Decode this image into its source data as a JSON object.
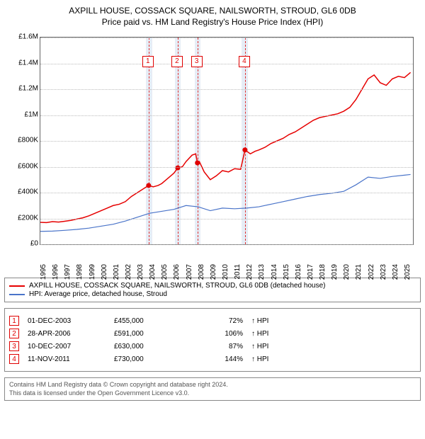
{
  "title": "AXPILL HOUSE, COSSACK SQUARE, NAILSWORTH, STROUD, GL6 0DB",
  "subtitle": "Price paid vs. HM Land Registry's House Price Index (HPI)",
  "chart": {
    "type": "line",
    "background_color": "#ffffff",
    "grid_color": "#bbbbbb",
    "border_color": "#666666",
    "xlim": [
      1995,
      2025.7
    ],
    "ylim": [
      0,
      1600000
    ],
    "yticks": [
      {
        "v": 0,
        "label": "£0"
      },
      {
        "v": 200000,
        "label": "£200K"
      },
      {
        "v": 400000,
        "label": "£400K"
      },
      {
        "v": 600000,
        "label": "£600K"
      },
      {
        "v": 800000,
        "label": "£800K"
      },
      {
        "v": 1000000,
        "label": "£1M"
      },
      {
        "v": 1200000,
        "label": "£1.2M"
      },
      {
        "v": 1400000,
        "label": "£1.4M"
      },
      {
        "v": 1600000,
        "label": "£1.6M"
      }
    ],
    "xticks": [
      1995,
      1996,
      1997,
      1998,
      1999,
      2000,
      2001,
      2002,
      2003,
      2004,
      2005,
      2006,
      2007,
      2008,
      2009,
      2010,
      2011,
      2012,
      2013,
      2014,
      2015,
      2016,
      2017,
      2018,
      2019,
      2020,
      2021,
      2022,
      2023,
      2024,
      2025
    ],
    "bands": [
      {
        "from": 2003.7,
        "to": 2004.2
      },
      {
        "from": 2006.1,
        "to": 2006.55
      },
      {
        "from": 2007.7,
        "to": 2008.2
      },
      {
        "from": 2011.6,
        "to": 2012.1
      }
    ],
    "vlines": [
      2003.92,
      2006.32,
      2007.94,
      2011.86
    ],
    "markers": [
      {
        "n": "1",
        "x": 2003.92
      },
      {
        "n": "2",
        "x": 2006.32
      },
      {
        "n": "3",
        "x": 2007.94
      },
      {
        "n": "4",
        "x": 2011.86
      }
    ],
    "marker_box_color": "#e00000",
    "series": [
      {
        "name": "AXPILL HOUSE, COSSACK SQUARE, NAILSWORTH, STROUD, GL6 0DB (detached house)",
        "color": "#e60000",
        "line_width": 1.5,
        "points": [
          [
            1995,
            170000
          ],
          [
            1995.5,
            168000
          ],
          [
            1996,
            175000
          ],
          [
            1996.5,
            172000
          ],
          [
            1997,
            178000
          ],
          [
            1997.5,
            185000
          ],
          [
            1998,
            195000
          ],
          [
            1998.5,
            205000
          ],
          [
            1999,
            220000
          ],
          [
            1999.5,
            240000
          ],
          [
            2000,
            260000
          ],
          [
            2000.5,
            280000
          ],
          [
            2001,
            300000
          ],
          [
            2001.5,
            310000
          ],
          [
            2002,
            330000
          ],
          [
            2002.5,
            370000
          ],
          [
            2003,
            400000
          ],
          [
            2003.5,
            430000
          ],
          [
            2003.92,
            455000
          ],
          [
            2004.3,
            445000
          ],
          [
            2004.7,
            455000
          ],
          [
            2005,
            470000
          ],
          [
            2005.5,
            510000
          ],
          [
            2006,
            550000
          ],
          [
            2006.32,
            591000
          ],
          [
            2006.7,
            600000
          ],
          [
            2007,
            640000
          ],
          [
            2007.5,
            690000
          ],
          [
            2007.8,
            700000
          ],
          [
            2007.94,
            630000
          ],
          [
            2008.1,
            640000
          ],
          [
            2008.5,
            560000
          ],
          [
            2009,
            500000
          ],
          [
            2009.5,
            530000
          ],
          [
            2010,
            570000
          ],
          [
            2010.5,
            560000
          ],
          [
            2011,
            585000
          ],
          [
            2011.5,
            580000
          ],
          [
            2011.86,
            730000
          ],
          [
            2012.3,
            700000
          ],
          [
            2012.7,
            720000
          ],
          [
            2013,
            730000
          ],
          [
            2013.5,
            750000
          ],
          [
            2014,
            780000
          ],
          [
            2014.5,
            800000
          ],
          [
            2015,
            820000
          ],
          [
            2015.5,
            850000
          ],
          [
            2016,
            870000
          ],
          [
            2016.5,
            900000
          ],
          [
            2017,
            930000
          ],
          [
            2017.5,
            960000
          ],
          [
            2018,
            980000
          ],
          [
            2018.5,
            990000
          ],
          [
            2019,
            1000000
          ],
          [
            2019.5,
            1010000
          ],
          [
            2020,
            1030000
          ],
          [
            2020.5,
            1060000
          ],
          [
            2021,
            1120000
          ],
          [
            2021.5,
            1200000
          ],
          [
            2022,
            1280000
          ],
          [
            2022.5,
            1310000
          ],
          [
            2023,
            1250000
          ],
          [
            2023.5,
            1230000
          ],
          [
            2024,
            1280000
          ],
          [
            2024.5,
            1300000
          ],
          [
            2025,
            1290000
          ],
          [
            2025.5,
            1330000
          ]
        ],
        "sale_dots": [
          [
            2003.92,
            455000
          ],
          [
            2006.32,
            591000
          ],
          [
            2007.94,
            630000
          ],
          [
            2011.86,
            730000
          ]
        ]
      },
      {
        "name": "HPI: Average price, detached house, Stroud",
        "color": "#4a74c9",
        "line_width": 1.2,
        "points": [
          [
            1995,
            100000
          ],
          [
            1996,
            102000
          ],
          [
            1997,
            108000
          ],
          [
            1998,
            115000
          ],
          [
            1999,
            125000
          ],
          [
            2000,
            140000
          ],
          [
            2001,
            155000
          ],
          [
            2002,
            180000
          ],
          [
            2003,
            210000
          ],
          [
            2004,
            240000
          ],
          [
            2005,
            255000
          ],
          [
            2006,
            270000
          ],
          [
            2007,
            300000
          ],
          [
            2008,
            290000
          ],
          [
            2009,
            260000
          ],
          [
            2010,
            280000
          ],
          [
            2011,
            275000
          ],
          [
            2012,
            280000
          ],
          [
            2013,
            290000
          ],
          [
            2014,
            310000
          ],
          [
            2015,
            330000
          ],
          [
            2016,
            350000
          ],
          [
            2017,
            370000
          ],
          [
            2018,
            385000
          ],
          [
            2019,
            395000
          ],
          [
            2020,
            410000
          ],
          [
            2021,
            460000
          ],
          [
            2022,
            520000
          ],
          [
            2023,
            510000
          ],
          [
            2024,
            525000
          ],
          [
            2025,
            535000
          ],
          [
            2025.5,
            540000
          ]
        ]
      }
    ]
  },
  "legend_title_1": "AXPILL HOUSE, COSSACK SQUARE, NAILSWORTH, STROUD, GL6 0DB (detached house)",
  "legend_title_2": "HPI: Average price, detached house, Stroud",
  "events": [
    {
      "n": "1",
      "date": "01-DEC-2003",
      "price": "£455,000",
      "pct": "72%",
      "suffix": "↑ HPI"
    },
    {
      "n": "2",
      "date": "28-APR-2006",
      "price": "£591,000",
      "pct": "106%",
      "suffix": "↑ HPI"
    },
    {
      "n": "3",
      "date": "10-DEC-2007",
      "price": "£630,000",
      "pct": "87%",
      "suffix": "↑ HPI"
    },
    {
      "n": "4",
      "date": "11-NOV-2011",
      "price": "£730,000",
      "pct": "144%",
      "suffix": "↑ HPI"
    }
  ],
  "footer_line1": "Contains HM Land Registry data © Crown copyright and database right 2024.",
  "footer_line2": "This data is licensed under the Open Government Licence v3.0.",
  "colors": {
    "red": "#e60000",
    "blue": "#4a74c9"
  }
}
